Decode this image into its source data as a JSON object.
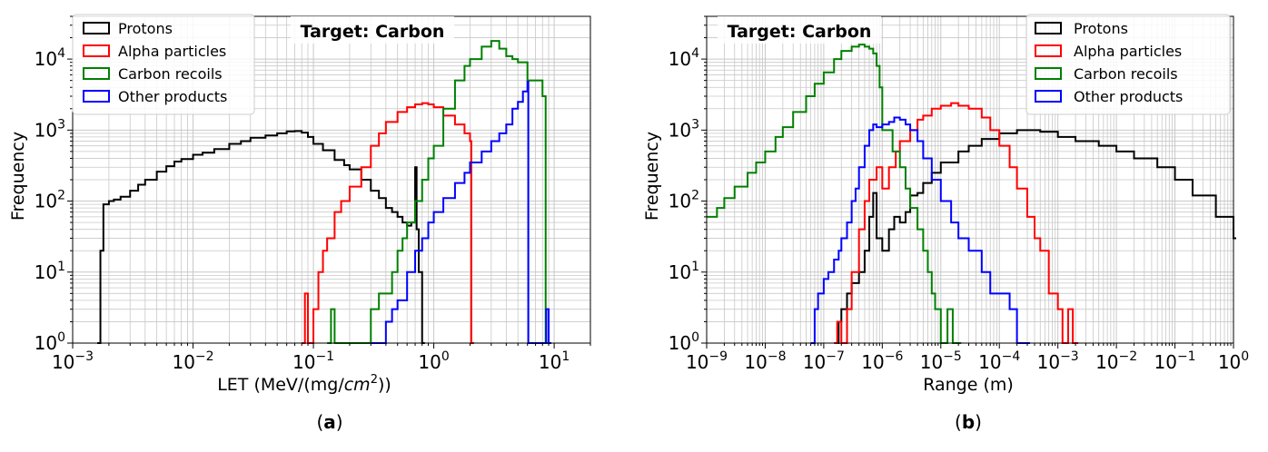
{
  "colors": {
    "Protons": "#000000",
    "Alpha particles": "#ff0000",
    "Carbon recoils": "#008000",
    "Other products": "#0000ff"
  },
  "panels": [
    {
      "id": "a",
      "caption_letter": "a",
      "caption_open": "(",
      "caption_close": ")",
      "annotation": "Target: Carbon",
      "ylabel": "Frequency",
      "xlabel_pre": "LET (MeV/(mg/",
      "xlabel_ital": "cm",
      "xlabel_sup": "2",
      "xlabel_post": "))",
      "xtick_labels": [
        {
          "base": "10",
          "exp": "−3"
        },
        {
          "base": "10",
          "exp": "−2"
        },
        {
          "base": "10",
          "exp": "−1"
        },
        {
          "base": "10",
          "exp": "0"
        },
        {
          "base": "10",
          "exp": "1"
        }
      ],
      "ytick_labels": [
        {
          "base": "10",
          "exp": "0"
        },
        {
          "base": "10",
          "exp": "1"
        },
        {
          "base": "10",
          "exp": "2"
        },
        {
          "base": "10",
          "exp": "3"
        },
        {
          "base": "10",
          "exp": "4"
        }
      ],
      "legend": [
        {
          "label": "Protons",
          "series": "Protons"
        },
        {
          "label": "Alpha particles",
          "series": "Alpha particles"
        },
        {
          "label": "Carbon recoils",
          "series": "Carbon recoils"
        },
        {
          "label": "Other products",
          "series": "Other products"
        }
      ]
    },
    {
      "id": "b",
      "caption_letter": "b",
      "caption_open": "(",
      "caption_close": ")",
      "annotation": "Target: Carbon",
      "ylabel": "Frequency",
      "xlabel": "Range (m)",
      "xtick_labels": [
        {
          "base": "10",
          "exp": "−9"
        },
        {
          "base": "10",
          "exp": "−8"
        },
        {
          "base": "10",
          "exp": "−7"
        },
        {
          "base": "10",
          "exp": "−6"
        },
        {
          "base": "10",
          "exp": "−5"
        },
        {
          "base": "10",
          "exp": "−4"
        },
        {
          "base": "10",
          "exp": "−3"
        },
        {
          "base": "10",
          "exp": "−2"
        },
        {
          "base": "10",
          "exp": "−1"
        },
        {
          "base": "10",
          "exp": "0"
        }
      ],
      "ytick_labels": [
        {
          "base": "10",
          "exp": "0"
        },
        {
          "base": "10",
          "exp": "1"
        },
        {
          "base": "10",
          "exp": "2"
        },
        {
          "base": "10",
          "exp": "3"
        },
        {
          "base": "10",
          "exp": "4"
        }
      ],
      "legend": [
        {
          "label": "Protons",
          "series": "Protons"
        },
        {
          "label": "Alpha particles",
          "series": "Alpha particles"
        },
        {
          "label": "Carbon recoils",
          "series": "Carbon recoils"
        },
        {
          "label": "Other products",
          "series": "Other products"
        }
      ]
    }
  ],
  "chart_data": [
    {
      "type": "line",
      "drawstyle": "step",
      "xscale": "log",
      "yscale": "log",
      "xlim": [
        0.001,
        20
      ],
      "ylim": [
        1,
        40000
      ],
      "grid": true,
      "legend_position": "top-left",
      "series": [
        {
          "name": "Protons",
          "x": [
            0.0016,
            0.0017,
            0.0018,
            0.002,
            0.0022,
            0.0025,
            0.003,
            0.0035,
            0.004,
            0.005,
            0.006,
            0.007,
            0.008,
            0.01,
            0.012,
            0.015,
            0.02,
            0.025,
            0.03,
            0.04,
            0.05,
            0.06,
            0.07,
            0.08,
            0.09,
            0.1,
            0.12,
            0.15,
            0.18,
            0.2,
            0.25,
            0.3,
            0.35,
            0.4,
            0.45,
            0.5,
            0.55,
            0.6,
            0.65,
            0.7,
            0.72,
            0.75,
            0.8
          ],
          "y": [
            1,
            20,
            90,
            100,
            105,
            115,
            140,
            170,
            200,
            260,
            310,
            360,
            390,
            450,
            480,
            540,
            640,
            700,
            780,
            840,
            900,
            960,
            970,
            920,
            800,
            640,
            520,
            380,
            320,
            280,
            200,
            140,
            110,
            80,
            70,
            60,
            50,
            45,
            50,
            300,
            40,
            10,
            1
          ]
        },
        {
          "name": "Alpha particles",
          "x": [
            0.08,
            0.085,
            0.09,
            0.1,
            0.11,
            0.12,
            0.13,
            0.15,
            0.17,
            0.2,
            0.25,
            0.3,
            0.35,
            0.4,
            0.5,
            0.6,
            0.7,
            0.8,
            0.9,
            1,
            1.2,
            1.5,
            1.8,
            2,
            2.05
          ],
          "y": [
            1,
            5,
            1,
            3,
            10,
            20,
            30,
            70,
            100,
            160,
            300,
            600,
            900,
            1300,
            1800,
            2100,
            2300,
            2400,
            2300,
            2100,
            1600,
            1200,
            900,
            700,
            1
          ]
        },
        {
          "name": "Carbon recoils",
          "x": [
            0.13,
            0.14,
            0.15,
            0.28,
            0.3,
            0.35,
            0.4,
            0.45,
            0.5,
            0.55,
            0.6,
            0.7,
            0.8,
            0.9,
            1,
            1.2,
            1.5,
            1.8,
            2,
            2.5,
            3,
            3.5,
            4,
            4.5,
            5,
            6,
            7,
            8,
            8.5
          ],
          "y": [
            1,
            3,
            1,
            1,
            3,
            5,
            5,
            10,
            20,
            30,
            50,
            100,
            200,
            400,
            600,
            2000,
            5000,
            8000,
            10000,
            15000,
            18000,
            14000,
            11000,
            10000,
            9000,
            5000,
            5000,
            3000,
            1
          ]
        },
        {
          "name": "Other products",
          "x": [
            0.3,
            0.35,
            0.4,
            0.45,
            0.5,
            0.6,
            0.7,
            0.8,
            0.9,
            1,
            1.2,
            1.5,
            1.8,
            2,
            2.5,
            3,
            3.5,
            4,
            4.5,
            5,
            5.5,
            6,
            6.1,
            8.2,
            8.6,
            9
          ],
          "y": [
            1,
            1,
            2,
            3,
            4,
            10,
            20,
            30,
            50,
            70,
            110,
            180,
            250,
            350,
            500,
            700,
            900,
            1200,
            2000,
            2500,
            3500,
            4800,
            1,
            1,
            3,
            1
          ]
        }
      ]
    },
    {
      "type": "line",
      "drawstyle": "step",
      "xscale": "log",
      "yscale": "log",
      "xlim": [
        1e-09,
        1
      ],
      "ylim": [
        1,
        40000
      ],
      "grid": true,
      "legend_position": "top-right",
      "series": [
        {
          "name": "Protons",
          "x": [
            1.6e-07,
            1.8e-07,
            2e-07,
            2.5e-07,
            3e-07,
            4e-07,
            5e-07,
            6e-07,
            7e-07,
            8e-07,
            1e-06,
            1.3e-06,
            1.6e-06,
            2e-06,
            2.5e-06,
            3e-06,
            4e-06,
            5e-06,
            7e-06,
            1e-05,
            2e-05,
            3e-05,
            5e-05,
            0.0001,
            0.0002,
            0.0003,
            0.0005,
            0.001,
            0.002,
            0.005,
            0.01,
            0.02,
            0.05,
            0.1,
            0.2,
            0.5,
            1
          ],
          "y": [
            1,
            2,
            3,
            5,
            7,
            10,
            20,
            60,
            130,
            30,
            20,
            40,
            60,
            50,
            70,
            120,
            130,
            180,
            250,
            350,
            500,
            600,
            750,
            900,
            1000,
            1000,
            950,
            800,
            700,
            600,
            500,
            400,
            300,
            200,
            120,
            60,
            30
          ]
        },
        {
          "name": "Alpha particles",
          "x": [
            1.5e-07,
            1.7e-07,
            2e-07,
            2.5e-07,
            3e-07,
            4e-07,
            5e-07,
            6e-07,
            8e-07,
            1e-06,
            1.3e-06,
            1.7e-06,
            2e-06,
            3e-06,
            4e-06,
            5e-06,
            7e-06,
            1e-05,
            1.5e-05,
            2e-05,
            3e-05,
            5e-05,
            7e-05,
            0.0001,
            0.00015,
            0.0002,
            0.0003,
            0.0004,
            0.0005,
            0.0007,
            0.001,
            0.0012,
            0.0015,
            0.0018,
            0.002
          ],
          "y": [
            1,
            2,
            1,
            3,
            10,
            40,
            100,
            200,
            300,
            150,
            300,
            500,
            700,
            1000,
            1400,
            1600,
            2000,
            2200,
            2400,
            2200,
            2000,
            1500,
            1000,
            600,
            300,
            150,
            60,
            30,
            20,
            5,
            3,
            1,
            3,
            1,
            1
          ]
        },
        {
          "name": "Carbon recoils",
          "x": [
            1e-09,
            1.5e-09,
            2e-09,
            3e-09,
            5e-09,
            7e-09,
            1e-08,
            1.5e-08,
            2e-08,
            3e-08,
            5e-08,
            7e-08,
            1e-07,
            1.5e-07,
            2e-07,
            3e-07,
            4e-07,
            5e-07,
            6e-07,
            7e-07,
            8e-07,
            9e-07,
            1e-06,
            1.5e-06,
            2e-06,
            2.5e-06,
            3e-06,
            4e-06,
            5e-06,
            6e-06,
            7e-06,
            8e-06,
            1e-05,
            1.3e-05,
            1.6e-05,
            2e-05
          ],
          "y": [
            60,
            80,
            110,
            160,
            250,
            350,
            500,
            800,
            1100,
            1800,
            3000,
            4500,
            6500,
            10000,
            13000,
            15000,
            16000,
            15000,
            14000,
            12000,
            8000,
            4000,
            1000,
            500,
            300,
            150,
            80,
            40,
            20,
            10,
            5,
            3,
            1,
            3,
            1,
            1
          ]
        },
        {
          "name": "Other products",
          "x": [
            6e-08,
            7e-08,
            8e-08,
            1e-07,
            1.2e-07,
            1.5e-07,
            1.8e-07,
            2e-07,
            2.5e-07,
            3e-07,
            3.5e-07,
            4e-07,
            5e-07,
            6e-07,
            7e-07,
            8e-07,
            1e-06,
            1.3e-06,
            1.6e-06,
            2e-06,
            2.5e-06,
            3e-06,
            4e-06,
            5e-06,
            7e-06,
            1e-05,
            1.5e-05,
            2e-05,
            3e-05,
            5e-05,
            7e-05,
            0.0001,
            0.00015,
            0.0002,
            0.0003
          ],
          "y": [
            1,
            3,
            5,
            8,
            10,
            15,
            20,
            30,
            50,
            100,
            150,
            300,
            600,
            1000,
            1200,
            1100,
            1200,
            1300,
            1500,
            1400,
            1200,
            1000,
            700,
            400,
            200,
            100,
            50,
            30,
            20,
            10,
            5,
            5,
            3,
            1,
            1
          ]
        }
      ]
    }
  ]
}
